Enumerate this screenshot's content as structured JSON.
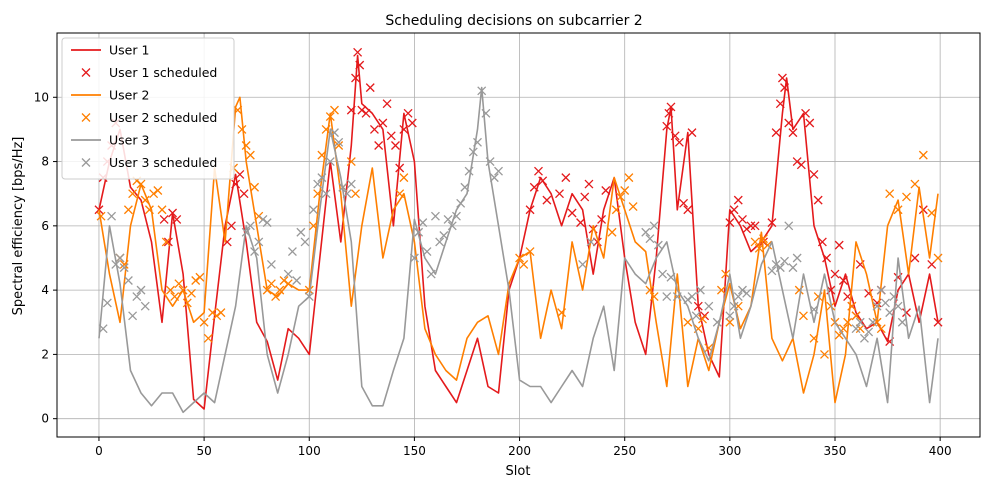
{
  "chart_data": {
    "type": "line",
    "title": "Scheduling decisions on subcarrier 2",
    "xlabel": "Slot",
    "ylabel": "Spectral efficiency [bps/Hz]",
    "xlim": [
      -19.95,
      418.95
    ],
    "ylim": [
      -0.57,
      12.0
    ],
    "xticks": [
      0,
      50,
      100,
      150,
      200,
      250,
      300,
      350,
      400
    ],
    "yticks": [
      0,
      2,
      4,
      6,
      8,
      10
    ],
    "grid": true,
    "legend_position": "top-left",
    "series": [
      {
        "name": "User 1",
        "color": "#e41a1c",
        "x": [
          0,
          5,
          10,
          15,
          20,
          25,
          30,
          35,
          40,
          45,
          50,
          55,
          60,
          65,
          70,
          75,
          80,
          85,
          90,
          95,
          100,
          105,
          110,
          115,
          120,
          123,
          125,
          130,
          135,
          140,
          145,
          150,
          155,
          160,
          165,
          170,
          175,
          180,
          185,
          190,
          195,
          200,
          205,
          210,
          215,
          220,
          225,
          230,
          235,
          240,
          245,
          250,
          255,
          260,
          265,
          270,
          272,
          275,
          280,
          285,
          290,
          295,
          300,
          305,
          310,
          315,
          320,
          325,
          327,
          330,
          335,
          340,
          345,
          350,
          355,
          360,
          365,
          370,
          375,
          380,
          385,
          390,
          395,
          399
        ],
        "y": [
          6.5,
          8.0,
          9.0,
          7.2,
          6.8,
          5.5,
          3.0,
          6.4,
          4.5,
          0.6,
          0.3,
          3.2,
          6.0,
          7.6,
          5.5,
          3.0,
          2.4,
          1.2,
          2.8,
          2.5,
          2.0,
          5.0,
          8.0,
          5.5,
          8.5,
          11.3,
          9.8,
          9.5,
          9.0,
          6.0,
          9.5,
          8.0,
          3.5,
          1.5,
          1.0,
          0.5,
          1.5,
          2.5,
          1.0,
          0.8,
          4.0,
          5.0,
          6.5,
          7.5,
          7.0,
          6.0,
          7.0,
          6.5,
          4.5,
          6.5,
          7.5,
          5.0,
          3.0,
          2.0,
          5.0,
          9.0,
          9.7,
          6.5,
          8.9,
          3.5,
          2.0,
          1.3,
          6.5,
          6.0,
          5.2,
          5.5,
          6.0,
          9.5,
          10.6,
          9.0,
          9.5,
          6.0,
          5.0,
          3.5,
          4.5,
          3.3,
          2.8,
          3.0,
          2.4,
          4.0,
          4.5,
          3.0,
          4.5,
          3.0
        ]
      },
      {
        "name": "User 1 scheduled",
        "color": "#e41a1c",
        "marker": "x",
        "x": [
          0,
          2,
          4,
          6,
          8,
          31,
          33,
          35,
          37,
          61,
          63,
          65,
          67,
          69,
          120,
          122,
          123,
          124,
          125,
          127,
          129,
          131,
          133,
          135,
          137,
          139,
          141,
          143,
          145,
          147,
          149,
          205,
          207,
          209,
          211,
          213,
          219,
          222,
          225,
          229,
          231,
          233,
          235,
          237,
          239,
          241,
          270,
          271,
          272,
          274,
          276,
          278,
          280,
          282,
          285,
          288,
          300,
          302,
          304,
          306,
          308,
          310,
          312,
          316,
          320,
          322,
          324,
          325,
          326,
          328,
          330,
          332,
          334,
          336,
          338,
          340,
          342,
          344,
          346,
          348,
          350,
          352,
          354,
          356,
          358,
          360,
          362,
          366,
          370,
          372,
          376,
          380,
          384,
          388,
          392,
          396,
          399
        ],
        "y": [
          6.5,
          7.5,
          8.0,
          8.5,
          9.2,
          6.2,
          5.5,
          6.4,
          6.2,
          5.5,
          6.0,
          7.3,
          7.6,
          7.0,
          9.6,
          10.6,
          11.4,
          11.0,
          9.6,
          9.5,
          10.3,
          9.0,
          8.5,
          9.2,
          9.8,
          8.8,
          8.5,
          7.8,
          9.0,
          9.5,
          9.2,
          6.5,
          7.2,
          7.7,
          7.4,
          6.8,
          7.0,
          7.5,
          6.4,
          6.1,
          6.9,
          7.3,
          5.9,
          5.5,
          6.2,
          7.1,
          9.1,
          9.5,
          9.7,
          8.8,
          8.6,
          6.7,
          6.5,
          8.9,
          3.5,
          3.2,
          6.1,
          6.5,
          6.8,
          6.2,
          5.9,
          6.0,
          6.0,
          5.5,
          6.1,
          8.9,
          9.8,
          10.6,
          10.3,
          9.2,
          8.9,
          8.0,
          7.9,
          9.5,
          9.2,
          7.6,
          6.8,
          5.5,
          5.0,
          4.0,
          4.5,
          5.4,
          4.3,
          3.8,
          3.5,
          3.2,
          4.8,
          3.9,
          3.6,
          4.0,
          2.4,
          4.4,
          3.3,
          5.0,
          6.5,
          4.8,
          3.0
        ]
      },
      {
        "name": "User 2",
        "color": "#ff7f00",
        "x": [
          0,
          5,
          10,
          15,
          20,
          25,
          30,
          35,
          40,
          45,
          50,
          55,
          60,
          65,
          67,
          70,
          75,
          80,
          85,
          90,
          95,
          100,
          105,
          110,
          115,
          120,
          125,
          130,
          135,
          140,
          145,
          150,
          155,
          160,
          165,
          170,
          175,
          180,
          185,
          190,
          195,
          200,
          205,
          210,
          215,
          220,
          225,
          230,
          235,
          240,
          245,
          250,
          255,
          260,
          265,
          270,
          275,
          280,
          285,
          290,
          295,
          300,
          305,
          310,
          315,
          320,
          325,
          330,
          335,
          340,
          345,
          350,
          355,
          360,
          365,
          370,
          375,
          380,
          385,
          390,
          395,
          399
        ],
        "y": [
          6.5,
          4.5,
          3.0,
          6.0,
          7.3,
          6.5,
          4.0,
          3.5,
          4.0,
          3.0,
          3.3,
          7.8,
          5.5,
          9.7,
          10.0,
          8.0,
          6.0,
          4.0,
          3.8,
          4.2,
          4.0,
          4.0,
          7.0,
          9.5,
          7.0,
          3.5,
          6.0,
          7.8,
          5.0,
          6.5,
          7.0,
          5.5,
          2.8,
          2.0,
          1.5,
          1.2,
          2.5,
          3.0,
          3.2,
          2.0,
          4.2,
          5.0,
          5.2,
          2.5,
          4.0,
          2.8,
          5.5,
          4.0,
          6.0,
          5.0,
          7.5,
          6.5,
          5.5,
          5.2,
          3.0,
          1.0,
          4.5,
          1.0,
          2.5,
          1.5,
          3.0,
          4.2,
          2.8,
          3.5,
          5.8,
          2.5,
          1.8,
          2.5,
          0.8,
          2.0,
          4.0,
          0.5,
          2.0,
          5.5,
          4.5,
          3.0,
          6.0,
          6.8,
          4.5,
          7.2,
          5.0,
          7.0
        ]
      },
      {
        "name": "User 2 scheduled",
        "color": "#ff7f00",
        "marker": "x",
        "x": [
          1,
          10,
          12,
          14,
          16,
          18,
          20,
          22,
          24,
          26,
          28,
          30,
          32,
          34,
          36,
          38,
          40,
          42,
          44,
          46,
          48,
          50,
          52,
          54,
          56,
          58,
          64,
          66,
          68,
          70,
          72,
          74,
          76,
          80,
          82,
          84,
          86,
          88,
          90,
          100,
          102,
          104,
          106,
          108,
          110,
          112,
          114,
          116,
          120,
          122,
          143,
          145,
          200,
          202,
          205,
          220,
          244,
          246,
          248,
          250,
          252,
          254,
          262,
          264,
          280,
          285,
          287,
          290,
          296,
          298,
          300,
          304,
          312,
          314,
          316,
          318,
          333,
          335,
          340,
          342,
          345,
          348,
          350,
          352,
          354,
          356,
          358,
          360,
          362,
          370,
          372,
          376,
          380,
          384,
          388,
          392,
          396,
          399
        ],
        "y": [
          6.3,
          5.0,
          4.8,
          6.5,
          7.0,
          7.4,
          7.3,
          6.8,
          6.5,
          7.0,
          7.1,
          6.5,
          5.5,
          4.0,
          3.8,
          4.2,
          4.0,
          3.6,
          3.9,
          4.3,
          4.4,
          3.0,
          2.5,
          3.3,
          3.2,
          3.3,
          7.8,
          9.6,
          9.0,
          8.5,
          8.2,
          7.2,
          6.3,
          4.0,
          4.2,
          3.8,
          4.0,
          4.3,
          4.2,
          4.0,
          6.0,
          7.0,
          8.2,
          9.0,
          9.4,
          9.6,
          8.5,
          7.2,
          8.0,
          7.0,
          7.0,
          7.5,
          5.0,
          4.8,
          5.2,
          3.3,
          5.8,
          6.5,
          6.9,
          7.1,
          7.5,
          6.6,
          4.0,
          3.8,
          3.0,
          2.8,
          3.1,
          2.2,
          4.0,
          4.5,
          3.0,
          3.5,
          5.5,
          5.3,
          5.6,
          5.4,
          4.0,
          3.2,
          2.5,
          3.8,
          2.0,
          3.5,
          3.0,
          2.6,
          2.8,
          3.0,
          3.5,
          3.2,
          2.8,
          3.0,
          2.8,
          7.0,
          6.5,
          6.9,
          7.3,
          8.2,
          6.4,
          5.0
        ]
      },
      {
        "name": "User 3",
        "color": "#999999",
        "x": [
          0,
          5,
          10,
          15,
          20,
          25,
          30,
          35,
          40,
          45,
          50,
          55,
          60,
          65,
          70,
          75,
          80,
          85,
          90,
          95,
          100,
          105,
          110,
          115,
          120,
          125,
          130,
          135,
          140,
          145,
          150,
          155,
          160,
          165,
          170,
          175,
          180,
          182,
          185,
          190,
          195,
          200,
          205,
          210,
          215,
          220,
          225,
          230,
          235,
          240,
          245,
          250,
          255,
          260,
          265,
          270,
          275,
          280,
          285,
          290,
          295,
          300,
          305,
          310,
          315,
          320,
          325,
          330,
          335,
          340,
          345,
          350,
          355,
          360,
          365,
          370,
          375,
          380,
          385,
          390,
          395,
          399
        ],
        "y": [
          2.5,
          6.0,
          4.2,
          1.5,
          0.8,
          0.4,
          0.8,
          0.8,
          0.2,
          0.5,
          0.8,
          0.5,
          2.0,
          3.5,
          6.0,
          5.0,
          2.0,
          0.8,
          2.0,
          3.5,
          3.8,
          6.5,
          9.0,
          7.5,
          5.5,
          1.0,
          0.4,
          0.4,
          1.5,
          2.5,
          6.2,
          5.0,
          4.5,
          5.5,
          6.5,
          7.0,
          9.0,
          10.3,
          8.0,
          6.0,
          4.0,
          1.2,
          1.0,
          1.0,
          0.5,
          1.0,
          1.5,
          1.0,
          2.5,
          3.5,
          1.5,
          5.0,
          4.5,
          4.2,
          5.0,
          5.5,
          4.0,
          3.5,
          2.5,
          1.8,
          3.0,
          4.5,
          2.5,
          3.5,
          4.8,
          5.5,
          4.0,
          2.5,
          4.5,
          3.0,
          4.5,
          3.0,
          2.5,
          2.0,
          1.0,
          2.5,
          0.5,
          5.0,
          2.5,
          3.5,
          0.5,
          2.5
        ]
      },
      {
        "name": "User 3 scheduled",
        "color": "#999999",
        "marker": "x",
        "x": [
          2,
          4,
          6,
          8,
          10,
          12,
          14,
          16,
          18,
          20,
          22,
          70,
          72,
          74,
          76,
          78,
          80,
          82,
          90,
          92,
          94,
          96,
          98,
          100,
          102,
          104,
          106,
          108,
          110,
          112,
          114,
          116,
          118,
          120,
          150,
          152,
          154,
          156,
          158,
          160,
          162,
          164,
          166,
          168,
          170,
          172,
          174,
          176,
          178,
          180,
          182,
          184,
          186,
          188,
          190,
          230,
          234,
          260,
          262,
          264,
          266,
          268,
          270,
          272,
          275,
          280,
          282,
          284,
          286,
          290,
          294,
          300,
          302,
          304,
          306,
          308,
          320,
          322,
          324,
          326,
          328,
          330,
          332,
          340,
          360,
          362,
          364,
          366,
          368,
          370,
          372,
          374,
          376,
          378,
          380,
          382
        ],
        "y": [
          2.8,
          3.6,
          6.3,
          4.8,
          5.0,
          4.7,
          4.3,
          3.2,
          3.8,
          4.0,
          3.5,
          5.8,
          6.0,
          5.2,
          5.5,
          6.2,
          6.1,
          4.8,
          4.5,
          5.2,
          4.3,
          5.8,
          5.5,
          3.8,
          6.5,
          7.3,
          7.5,
          7.0,
          8.0,
          8.9,
          8.6,
          7.2,
          7.0,
          7.3,
          5.0,
          5.8,
          6.1,
          5.2,
          4.5,
          6.3,
          5.5,
          5.7,
          6.2,
          6.0,
          6.3,
          6.7,
          7.2,
          7.7,
          8.3,
          8.6,
          10.2,
          9.5,
          8.0,
          7.5,
          7.7,
          4.8,
          5.5,
          5.8,
          5.6,
          6.0,
          5.4,
          4.5,
          3.8,
          4.4,
          3.8,
          3.7,
          3.8,
          3.2,
          4.0,
          3.5,
          3.0,
          3.2,
          3.5,
          3.8,
          4.0,
          3.9,
          4.6,
          4.8,
          4.7,
          4.9,
          6.0,
          4.7,
          5.0,
          3.4,
          2.8,
          3.0,
          2.5,
          2.7,
          3.0,
          3.5,
          4.0,
          3.6,
          3.3,
          3.8,
          3.5,
          3.0
        ]
      }
    ]
  }
}
